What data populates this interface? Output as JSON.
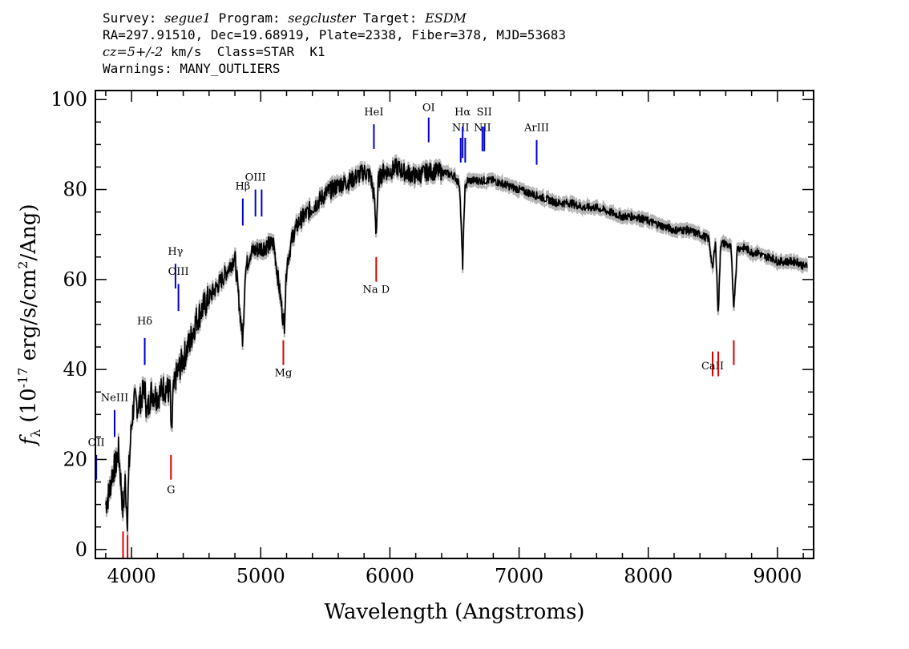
{
  "header": {
    "survey_label": "Survey:",
    "survey": "segue1",
    "program_label": "Program:",
    "program": "segcluster",
    "target_label": "Target:",
    "target": "ESDM",
    "line2": "RA=297.91510, Dec=19.68919, Plate=2338, Fiber=378, MJD=53683",
    "redshift": "cz=5+/-2",
    "redshift_rest": " km/s  Class=STAR  K1",
    "warnings": "Warnings: MANY_OUTLIERS"
  },
  "chart_data": {
    "type": "line",
    "xlabel": "Wavelength (Angstroms)",
    "ylabel": "f_λ (10^-17 erg/s/cm^2/Ang)",
    "xlim": [
      3720,
      9280
    ],
    "ylim": [
      -2,
      102
    ],
    "xticks": [
      4000,
      5000,
      6000,
      7000,
      8000,
      9000
    ],
    "yticks": [
      0,
      20,
      40,
      60,
      80,
      100
    ],
    "series_color": "#000000",
    "error_color": "#b4b4b4",
    "emission_color": "#0000cc",
    "absorption_color": "#dd0000",
    "spectrum": {
      "x": [
        3800,
        3830,
        3850,
        3880,
        3900,
        3920,
        3934,
        3950,
        3968,
        3980,
        4000,
        4020,
        4050,
        4080,
        4101,
        4120,
        4150,
        4200,
        4250,
        4300,
        4308,
        4320,
        4340,
        4380,
        4450,
        4500,
        4600,
        4700,
        4800,
        4861,
        4880,
        4920,
        5000,
        5100,
        5170,
        5183,
        5200,
        5250,
        5300,
        5400,
        5500,
        5600,
        5700,
        5800,
        5850,
        5880,
        5893,
        5910,
        5950,
        6000,
        6050,
        6100,
        6200,
        6300,
        6400,
        6500,
        6540,
        6563,
        6580,
        6600,
        6700,
        6800,
        6900,
        7000,
        7100,
        7200,
        7300,
        7400,
        7500,
        7600,
        7700,
        7800,
        7900,
        8000,
        8100,
        8200,
        8300,
        8400,
        8470,
        8498,
        8520,
        8542,
        8560,
        8600,
        8640,
        8662,
        8690,
        8750,
        8800,
        8850,
        8900,
        8950,
        9000,
        9050,
        9100,
        9150,
        9200,
        9230
      ],
      "y": [
        10,
        13,
        17,
        19,
        22,
        14,
        8,
        15,
        7,
        18,
        28,
        33,
        32,
        34,
        36,
        30,
        35,
        34,
        36,
        35,
        23,
        34,
        38,
        41,
        46,
        51,
        56,
        60,
        65,
        46,
        62,
        66,
        67,
        68,
        52,
        50,
        63,
        70,
        73,
        76,
        79,
        81,
        82,
        84,
        83,
        78,
        70,
        82,
        84,
        84,
        85,
        84,
        83,
        84,
        84,
        83,
        81,
        63,
        80,
        82,
        82,
        82,
        81,
        80,
        79,
        78,
        77,
        77,
        76,
        76,
        75,
        74,
        74,
        73,
        72,
        71,
        71,
        70,
        69,
        62,
        69,
        52,
        68,
        68,
        67,
        54,
        67,
        67,
        66,
        66,
        65,
        65,
        64,
        64,
        64,
        64,
        63,
        63
      ]
    },
    "emission_lines": [
      {
        "label": "OII",
        "x": 3727,
        "y0": 15.5,
        "y1": 21,
        "label_y": 23
      },
      {
        "label": "NeIII",
        "x": 3869,
        "y0": 25,
        "y1": 31,
        "label_y": 33
      },
      {
        "label": "Hδ",
        "x": 4102,
        "y0": 41,
        "y1": 47,
        "label_y": 50
      },
      {
        "label": "Hγ",
        "x": 4340,
        "y0": 58,
        "y1": 63.5,
        "label_y": 65.5
      },
      {
        "label": "OIII",
        "x": 4363,
        "y0": 53,
        "y1": 59,
        "label_y": 61
      },
      {
        "label": "Hβ",
        "x": 4861,
        "y0": 72,
        "y1": 78,
        "label_y": 80
      },
      {
        "label": "OIII",
        "x": 4959,
        "y0": 74,
        "y1": 80,
        "label_y": 82
      },
      {
        "label": "",
        "x": 5007,
        "y0": 74,
        "y1": 80,
        "label_y": 82
      },
      {
        "label": "HeI",
        "x": 5876,
        "y0": 89,
        "y1": 94.5,
        "label_y": 96.5
      },
      {
        "label": "OI",
        "x": 6300,
        "y0": 90.5,
        "y1": 96,
        "label_y": 97.5
      },
      {
        "label": "NII",
        "x": 6548,
        "y0": 86,
        "y1": 91.5,
        "label_y": 93
      },
      {
        "label": "Hα",
        "x": 6563,
        "y0": 87,
        "y1": 94,
        "label_y": 96.5
      },
      {
        "label": "",
        "x": 6583,
        "y0": 86,
        "y1": 91.5,
        "label_y": 93
      },
      {
        "label": "NII",
        "x": 6716,
        "y0": 88.5,
        "y1": 94,
        "label_y": 93
      },
      {
        "label": "SII",
        "x": 6731,
        "y0": 88.5,
        "y1": 94,
        "label_y": 96.5
      },
      {
        "label": "ArIII",
        "x": 7136,
        "y0": 85.5,
        "y1": 91,
        "label_y": 93
      }
    ],
    "absorption_lines": [
      {
        "label": "",
        "x": 3934,
        "y0": -2,
        "y1": 4,
        "label_y": -4
      },
      {
        "label": "",
        "x": 3969,
        "y0": -2,
        "y1": 4,
        "label_y": -4
      },
      {
        "label": "G",
        "x": 4305,
        "y0": 15.5,
        "y1": 21,
        "label_y": 12.5
      },
      {
        "label": "Mg",
        "x": 5175,
        "y0": 41,
        "y1": 46.5,
        "label_y": 38.5
      },
      {
        "label": "Na D",
        "x": 5894,
        "y0": 59.5,
        "y1": 65,
        "label_y": 57
      },
      {
        "label": "CaII",
        "x": 8498,
        "y0": 38.5,
        "y1": 44,
        "label_y": 40
      },
      {
        "label": "",
        "x": 8542,
        "y0": 38.5,
        "y1": 44,
        "label_y": 40
      },
      {
        "label": "",
        "x": 8662,
        "y0": 41,
        "y1": 46.5,
        "label_y": 40
      }
    ]
  }
}
